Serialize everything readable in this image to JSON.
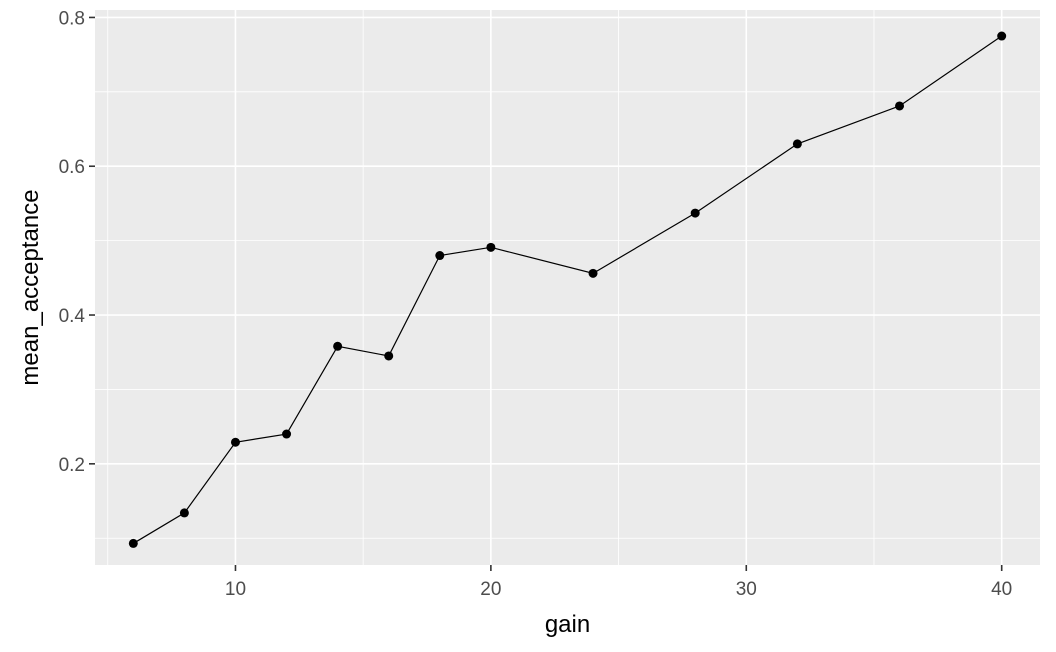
{
  "chart_data": {
    "type": "line",
    "title": "",
    "xlabel": "gain",
    "ylabel": "mean_acceptance",
    "xlim": [
      4.5,
      41.5
    ],
    "ylim": [
      0.064,
      0.81
    ],
    "x_ticks": [
      10,
      20,
      30,
      40
    ],
    "x_tick_labels": [
      "10",
      "20",
      "30",
      "40"
    ],
    "x_minor_ticks": [
      5,
      15,
      25,
      35
    ],
    "y_ticks": [
      0.2,
      0.4,
      0.6,
      0.8
    ],
    "y_tick_labels": [
      "0.2",
      "0.4",
      "0.6",
      "0.8"
    ],
    "y_minor_ticks": [
      0.1,
      0.3,
      0.5,
      0.7
    ],
    "grid": true,
    "panel_background": "#ebebeb",
    "grid_color": "#ffffff",
    "line_color": "#000000",
    "point_color": "#000000",
    "series": [
      {
        "x": [
          6,
          8,
          10,
          12,
          14,
          16,
          18,
          20,
          24,
          28,
          32,
          36,
          40
        ],
        "y": [
          0.093,
          0.134,
          0.229,
          0.24,
          0.358,
          0.345,
          0.48,
          0.491,
          0.456,
          0.537,
          0.63,
          0.681,
          0.775
        ]
      }
    ]
  }
}
